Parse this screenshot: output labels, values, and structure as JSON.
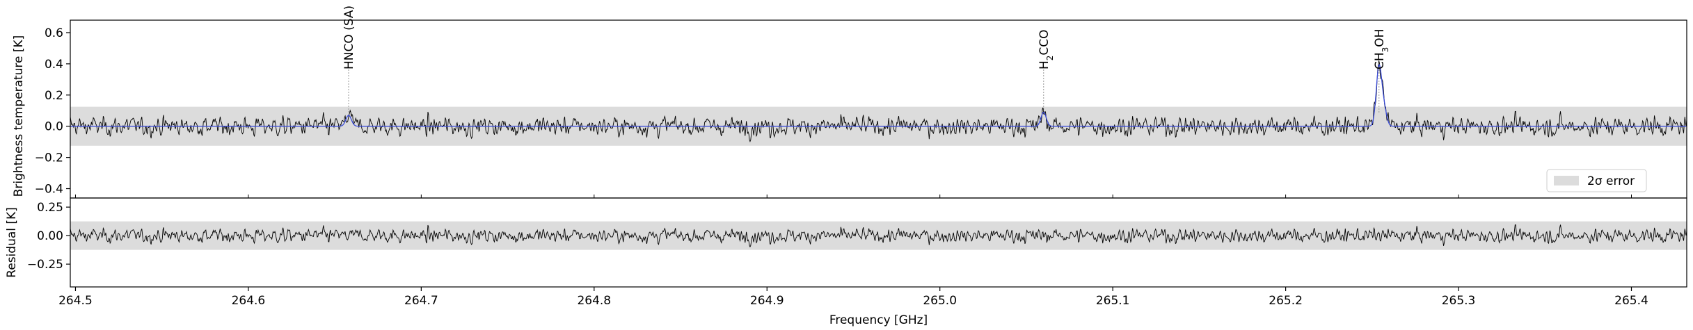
{
  "chart_data": [
    {
      "type": "line",
      "panel": "top",
      "ylabel": "Brightness temperature [K]",
      "xlim": [
        264.497,
        265.432
      ],
      "ylim": [
        -0.46,
        0.68
      ],
      "yticks": [
        -0.4,
        -0.2,
        0.0,
        0.2,
        0.4,
        0.6
      ],
      "ytick_labels": [
        "−0.4",
        "−0.2",
        "0.0",
        "0.2",
        "0.4",
        "0.6"
      ],
      "error_band": [
        -0.125,
        0.125
      ],
      "legend": {
        "label": "2σ error",
        "placement": "lower-right"
      },
      "line_annotations": [
        {
          "x": 264.658,
          "label": "HNCO (SA)"
        },
        {
          "x": 265.06,
          "label_parts": [
            "H",
            "2",
            "CCO"
          ]
        },
        {
          "x": 265.254,
          "label_parts": [
            "CH",
            "3",
            "OH"
          ]
        }
      ],
      "series": [
        {
          "role": "observed",
          "noise_sigma": 0.06,
          "seed": 12345
        },
        {
          "role": "model",
          "peaks": [
            {
              "x": 264.658,
              "amp": 0.07,
              "width": 0.0016
            },
            {
              "x": 265.06,
              "amp": 0.09,
              "width": 0.0015
            },
            {
              "x": 265.254,
              "amp": 0.38,
              "width": 0.0016
            },
            {
              "x": 265.257,
              "amp": 0.1,
              "width": 0.0015
            }
          ]
        }
      ],
      "colors": {
        "observed": "#000000",
        "model": "#3a4bd8",
        "band": "#dcdcdc",
        "guide": "#999999"
      }
    },
    {
      "type": "line",
      "panel": "bottom",
      "xlabel": "Frequency [GHz]",
      "ylabel": "Residual [K]",
      "xlim": [
        264.497,
        265.432
      ],
      "ylim": [
        -0.45,
        0.33
      ],
      "yticks": [
        -0.25,
        0.0,
        0.25
      ],
      "ytick_labels": [
        "−0.25",
        "0.00",
        "0.25"
      ],
      "xticks": [
        264.5,
        264.6,
        264.7,
        264.8,
        264.9,
        265.0,
        265.1,
        265.2,
        265.3,
        265.4
      ],
      "xtick_labels": [
        "264.5",
        "264.6",
        "264.7",
        "264.8",
        "264.9",
        "265.0",
        "265.1",
        "265.2",
        "265.3",
        "265.4"
      ],
      "error_band": [
        -0.125,
        0.125
      ]
    }
  ]
}
